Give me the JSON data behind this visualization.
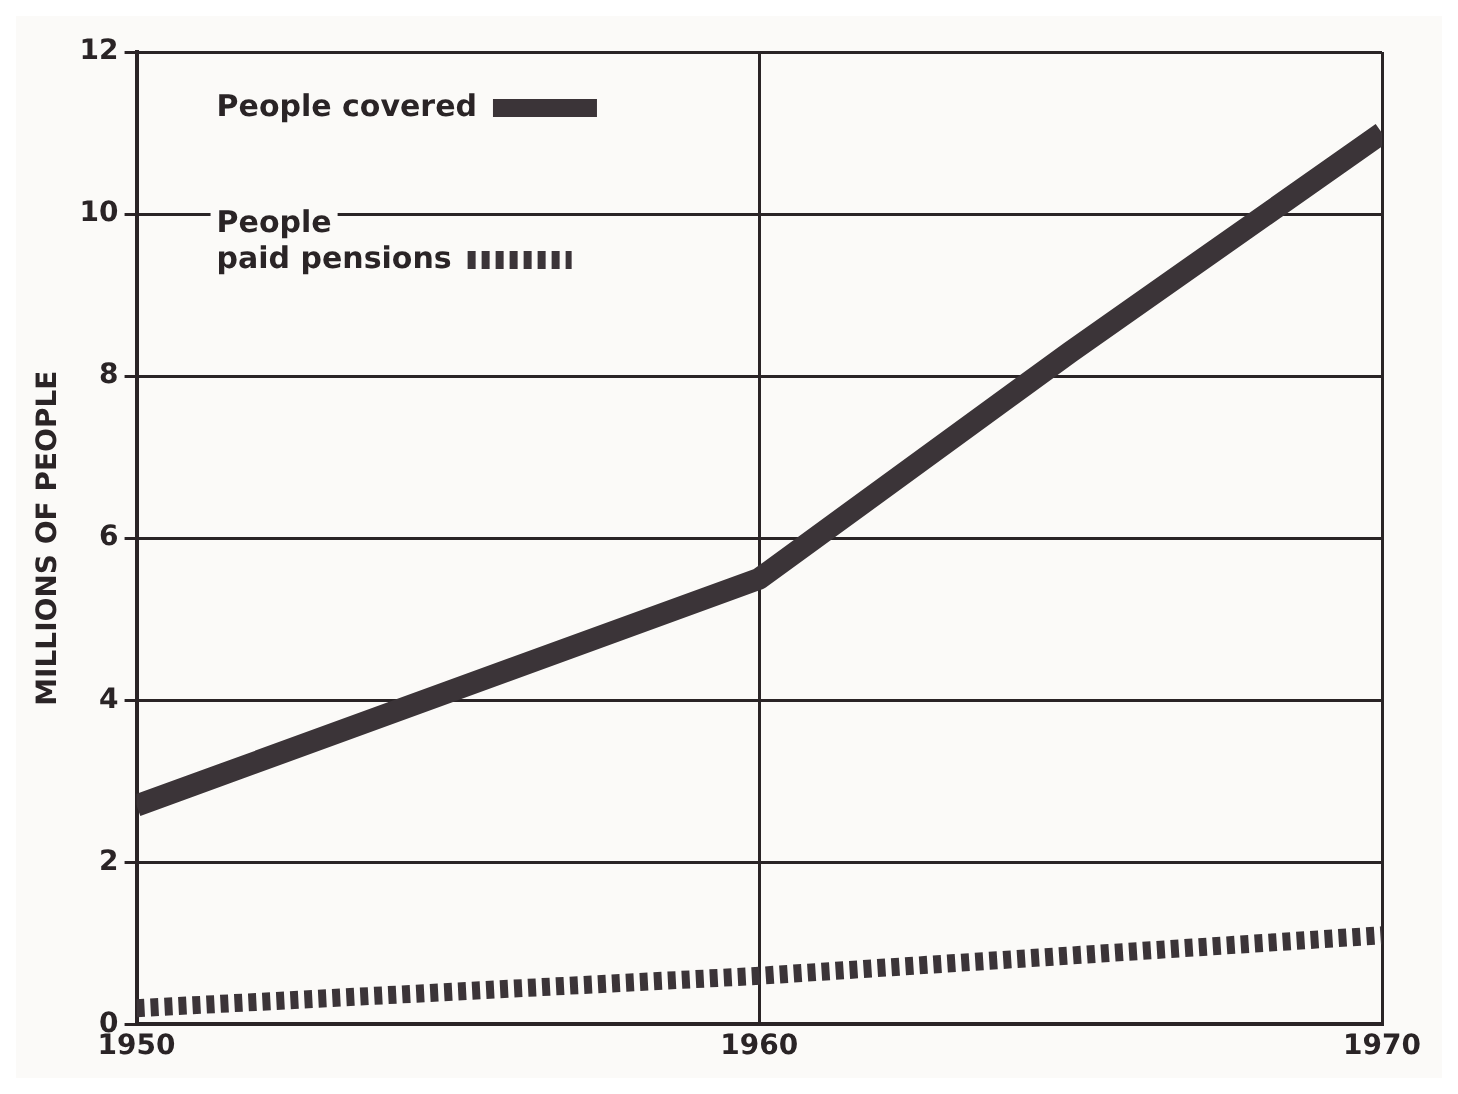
{
  "chart_data": {
    "type": "line",
    "ylabel": "MILLIONS OF PEOPLE",
    "xlim": [
      1950,
      1970
    ],
    "xticks": [
      1950,
      1960,
      1970
    ],
    "ylim": [
      0,
      12
    ],
    "yticks": [
      0,
      2,
      4,
      6,
      8,
      10,
      12
    ],
    "grid": true,
    "legend": "top left",
    "marker": "none",
    "series": [
      {
        "name": "People covered",
        "color": "#3b3438",
        "x": [
          1950,
          1955,
          1960,
          1965,
          1970
        ],
        "values": [
          2.7,
          4.1,
          5.5,
          8.3,
          11.0
        ],
        "line_style": "solid"
      },
      {
        "name": "People\npaid pensions",
        "color": "#3b3438",
        "x": [
          1950,
          1960,
          1970
        ],
        "values": [
          0.2,
          0.6,
          1.1
        ],
        "line_style": "dashed"
      }
    ]
  }
}
